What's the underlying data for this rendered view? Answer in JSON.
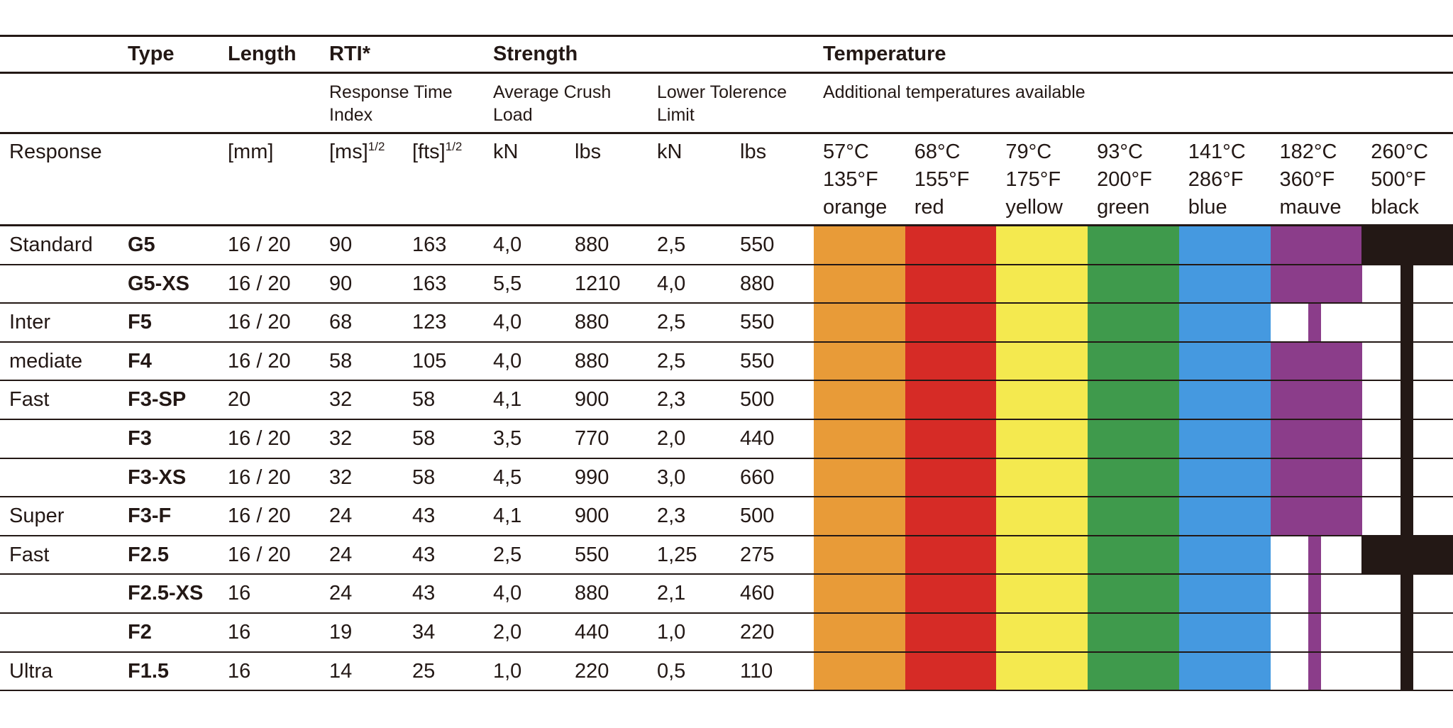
{
  "header": {
    "type": "Type",
    "length": "Length",
    "rti": "RTI*",
    "strength": "Strength",
    "temperature": "Temperature",
    "rti_sub_1": "Response Time",
    "rti_sub_2": "Index",
    "acl_1": "Average Crush",
    "acl_2": "Load",
    "ltl_1": "Lower Tolerence",
    "ltl_2": "Limit",
    "additional": "Additional temperatures available",
    "response": "Response",
    "mm": "[mm]",
    "ms": "[ms]",
    "fts": "[fts]",
    "half": "1/2",
    "kn1": "kN",
    "lbs1": "lbs",
    "kn2": "kN",
    "lbs2": "lbs"
  },
  "temperatures": [
    {
      "c": "57°C",
      "f": "135°F",
      "name": "orange",
      "color": "#E89B38"
    },
    {
      "c": "68°C",
      "f": "155°F",
      "name": "red",
      "color": "#D62B26"
    },
    {
      "c": "79°C",
      "f": "175°F",
      "name": "yellow",
      "color": "#F4E94F"
    },
    {
      "c": "93°C",
      "f": "200°F",
      "name": "green",
      "color": "#3F9A4C"
    },
    {
      "c": "141°C",
      "f": "286°F",
      "name": "blue",
      "color": "#4599E0"
    },
    {
      "c": "182°C",
      "f": "360°F",
      "name": "mauve",
      "color": "#8B3D8A"
    },
    {
      "c": "260°C",
      "f": "500°F",
      "name": "black",
      "color": "#231815"
    }
  ],
  "rows": [
    {
      "response": "Standard",
      "type": "G5",
      "length": "16 / 20",
      "ms": "90",
      "fts": "163",
      "acl_kn": "4,0",
      "acl_lbs": "880",
      "ltl_kn": "2,5",
      "ltl_lbs": "550",
      "mauve": "full",
      "black": "full"
    },
    {
      "response": "",
      "type": "G5-XS",
      "length": "16 / 20",
      "ms": "90",
      "fts": "163",
      "acl_kn": "5,5",
      "acl_lbs": "1210",
      "ltl_kn": "4,0",
      "ltl_lbs": "880",
      "mauve": "full",
      "black": "stripe"
    },
    {
      "response": "Inter",
      "type": "F5",
      "length": "16 / 20",
      "ms": "68",
      "fts": "123",
      "acl_kn": "4,0",
      "acl_lbs": "880",
      "ltl_kn": "2,5",
      "ltl_lbs": "550",
      "mauve": "stripe",
      "black": "stripe"
    },
    {
      "response": "mediate",
      "type": "F4",
      "length": "16 / 20",
      "ms": "58",
      "fts": "105",
      "acl_kn": "4,0",
      "acl_lbs": "880",
      "ltl_kn": "2,5",
      "ltl_lbs": "550",
      "mauve": "full",
      "black": "stripe"
    },
    {
      "response": "Fast",
      "type": "F3-SP",
      "length": "20",
      "ms": "32",
      "fts": "58",
      "acl_kn": "4,1",
      "acl_lbs": "900",
      "ltl_kn": "2,3",
      "ltl_lbs": "500",
      "mauve": "full",
      "black": "stripe"
    },
    {
      "response": "",
      "type": "F3",
      "length": "16 / 20",
      "ms": "32",
      "fts": "58",
      "acl_kn": "3,5",
      "acl_lbs": "770",
      "ltl_kn": "2,0",
      "ltl_lbs": "440",
      "mauve": "full",
      "black": "stripe"
    },
    {
      "response": "",
      "type": "F3-XS",
      "length": "16 / 20",
      "ms": "32",
      "fts": "58",
      "acl_kn": "4,5",
      "acl_lbs": "990",
      "ltl_kn": "3,0",
      "ltl_lbs": "660",
      "mauve": "full",
      "black": "stripe"
    },
    {
      "response": "Super",
      "type": "F3-F",
      "length": "16 / 20",
      "ms": "24",
      "fts": "43",
      "acl_kn": "4,1",
      "acl_lbs": "900",
      "ltl_kn": "2,3",
      "ltl_lbs": "500",
      "mauve": "full",
      "black": "stripe"
    },
    {
      "response": "Fast",
      "type": "F2.5",
      "length": "16 / 20",
      "ms": "24",
      "fts": "43",
      "acl_kn": "2,5",
      "acl_lbs": "550",
      "ltl_kn": "1,25",
      "ltl_lbs": "275",
      "mauve": "stripe",
      "black": "full"
    },
    {
      "response": "",
      "type": "F2.5-XS",
      "length": "16",
      "ms": "24",
      "fts": "43",
      "acl_kn": "4,0",
      "acl_lbs": "880",
      "ltl_kn": "2,1",
      "ltl_lbs": "460",
      "mauve": "stripe",
      "black": "stripe"
    },
    {
      "response": "",
      "type": "F2",
      "length": "16",
      "ms": "19",
      "fts": "34",
      "acl_kn": "2,0",
      "acl_lbs": "440",
      "ltl_kn": "1,0",
      "ltl_lbs": "220",
      "mauve": "stripe",
      "black": "stripe"
    },
    {
      "response": "Ultra",
      "type": "F1.5",
      "length": "16",
      "ms": "14",
      "fts": "25",
      "acl_kn": "1,0",
      "acl_lbs": "220",
      "ltl_kn": "0,5",
      "ltl_lbs": "110",
      "mauve": "stripe",
      "black": "stripe"
    }
  ]
}
